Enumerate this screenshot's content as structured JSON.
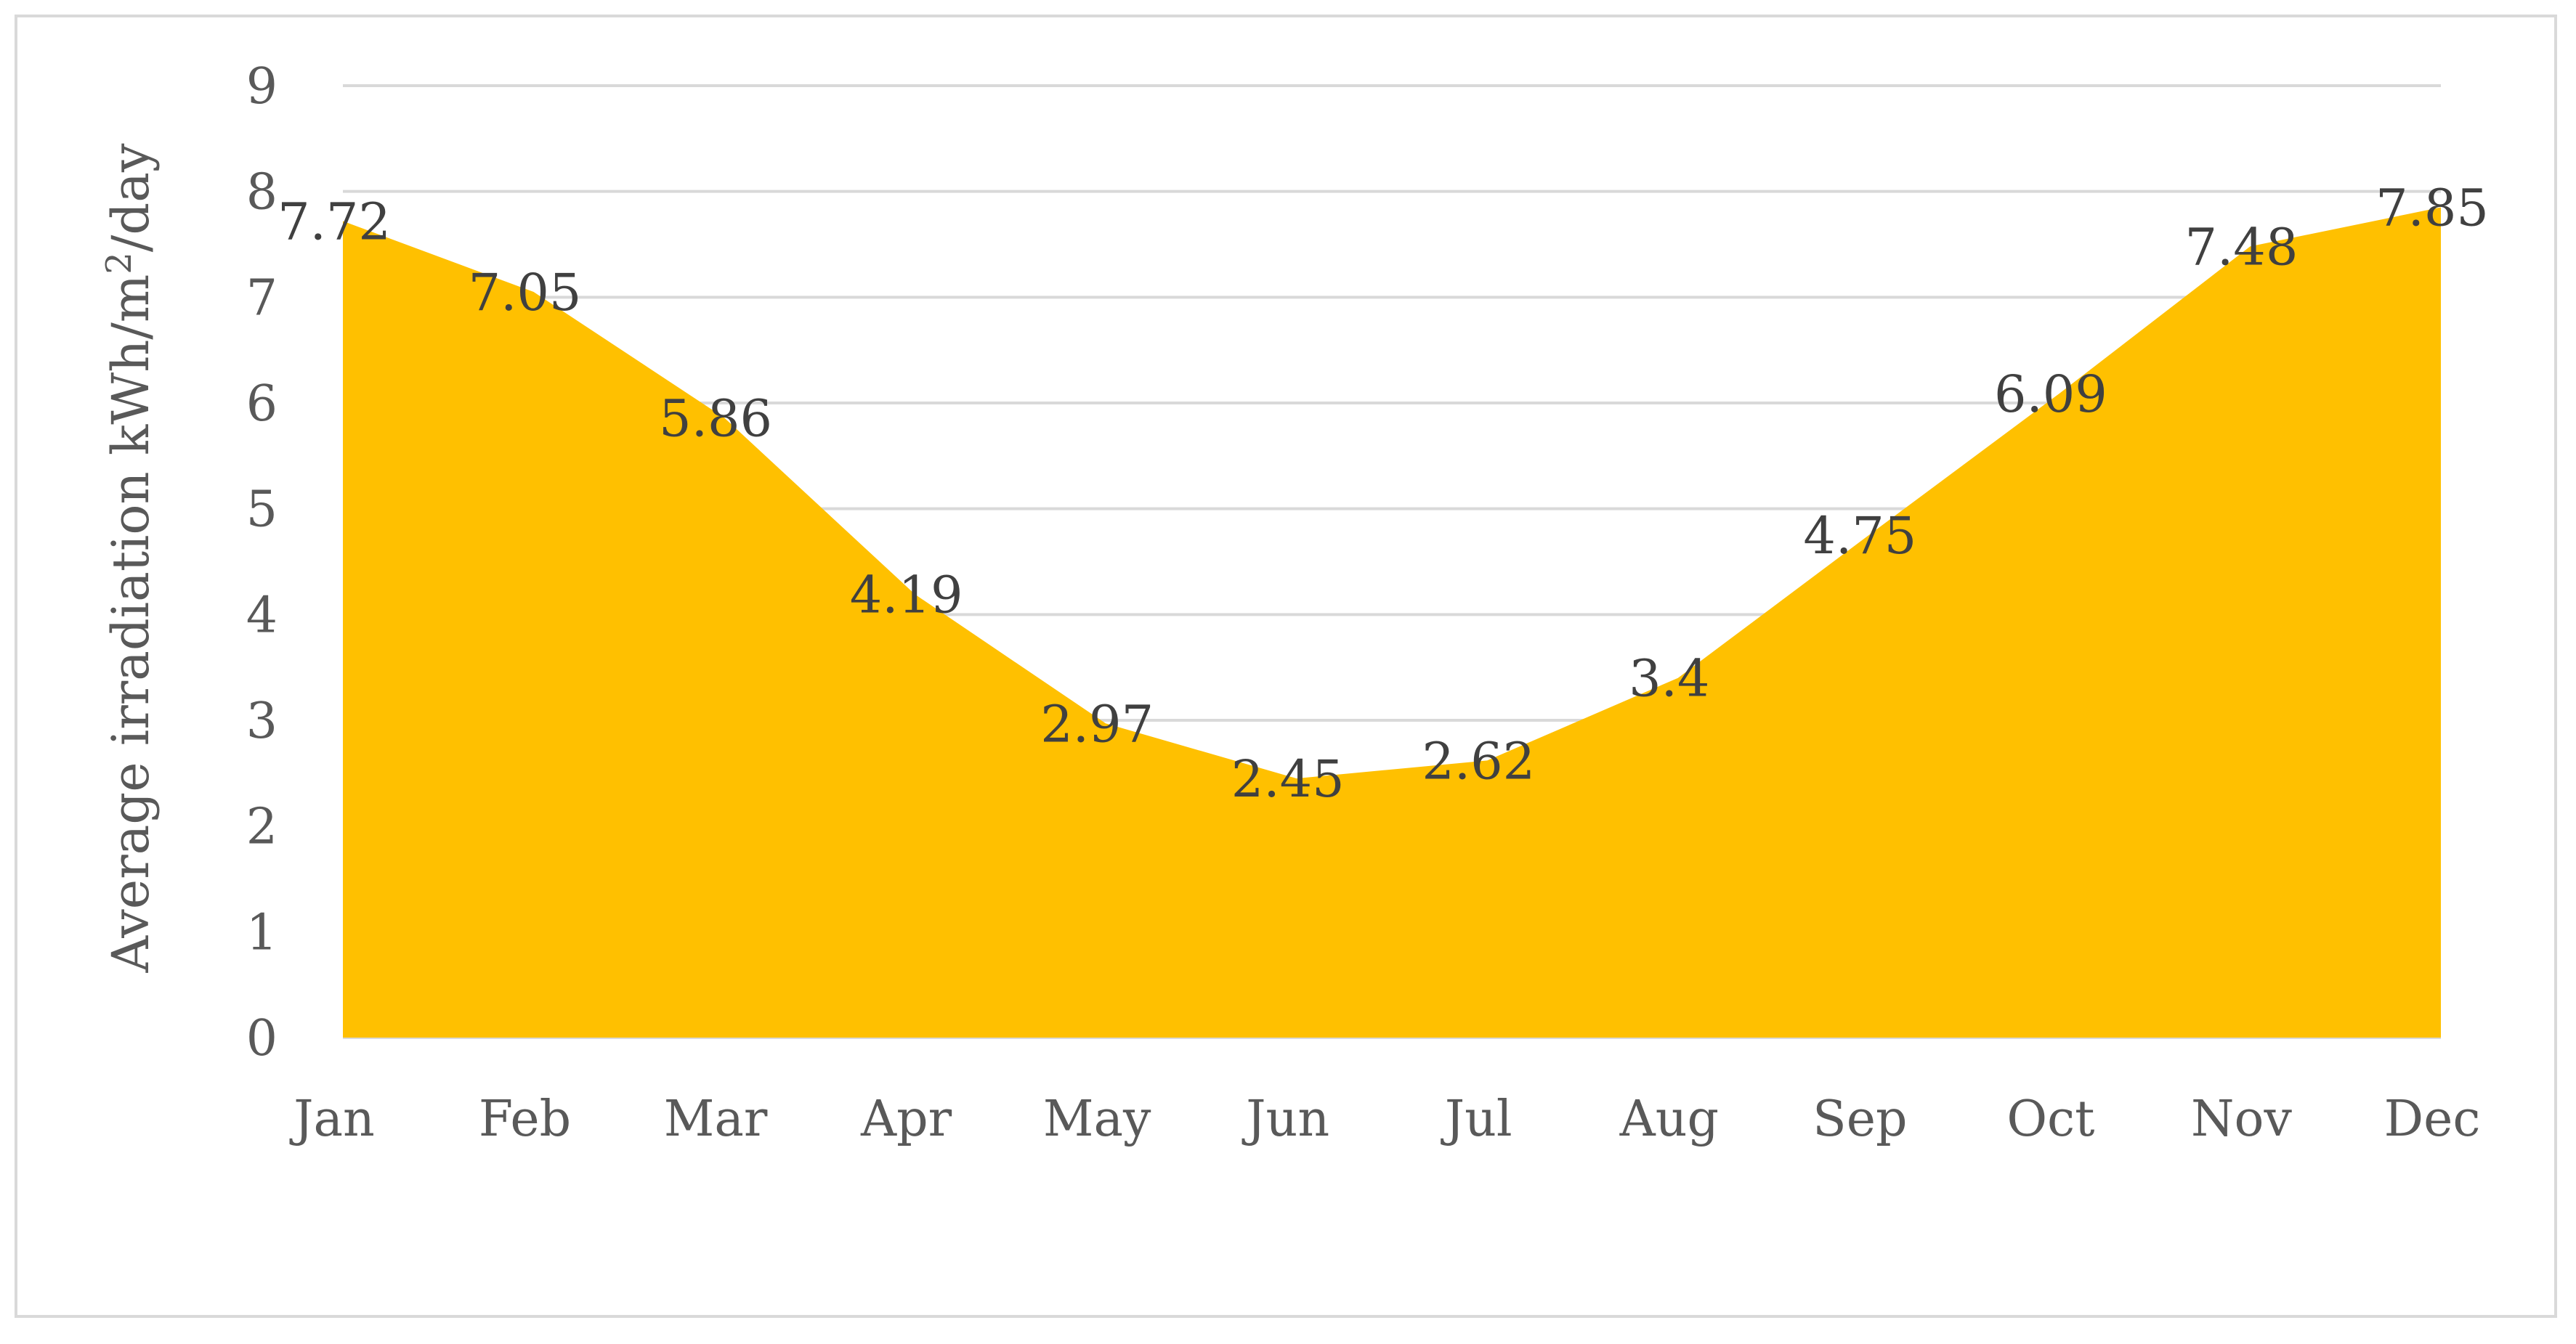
{
  "chart_data": {
    "type": "area",
    "categories": [
      "Jan",
      "Feb",
      "Mar",
      "Apr",
      "May",
      "Jun",
      "Jul",
      "Aug",
      "Sep",
      "Oct",
      "Nov",
      "Dec"
    ],
    "series": [
      {
        "values": [
          7.72,
          7.05,
          5.86,
          4.19,
          2.97,
          2.45,
          2.62,
          3.4,
          4.75,
          6.09,
          7.48,
          7.85
        ],
        "data_labels": [
          "7.72",
          "7.05",
          "5.86",
          "4.19",
          "2.97",
          "2.45",
          "2.62",
          "3.4",
          "4.75",
          "6.09",
          "7.48",
          "7.85"
        ],
        "color": "#ffc000"
      }
    ],
    "title": "",
    "xlabel": "",
    "ylabel": {
      "prefix": "Average irradiation kWh/m",
      "superscript": "2",
      "suffix": "/day"
    },
    "ylim": [
      0,
      9
    ],
    "yticks": [
      "0",
      "1",
      "2",
      "3",
      "4",
      "5",
      "6",
      "7",
      "8",
      "9"
    ],
    "grid": true,
    "legend": "none",
    "colors": {
      "area": "#ffc000",
      "grid": "#d9d9d9",
      "tick_text": "#595959",
      "label_text": "#404040",
      "border": "#d9d9d9"
    }
  }
}
